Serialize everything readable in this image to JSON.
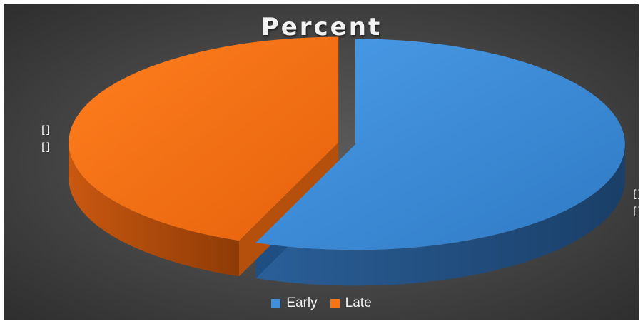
{
  "chart_data": {
    "type": "pie",
    "title": "Percent",
    "categories": [
      "Early",
      "Late"
    ],
    "values": [
      56,
      44
    ],
    "data_labels": [
      {
        "lines": [
          "[]",
          "[]"
        ]
      },
      {
        "lines": [
          "[]",
          "[]"
        ]
      }
    ],
    "colors": [
      "#3f8fdc",
      "#f57415"
    ],
    "legend": {
      "position": "bottom"
    },
    "three_d": true
  }
}
